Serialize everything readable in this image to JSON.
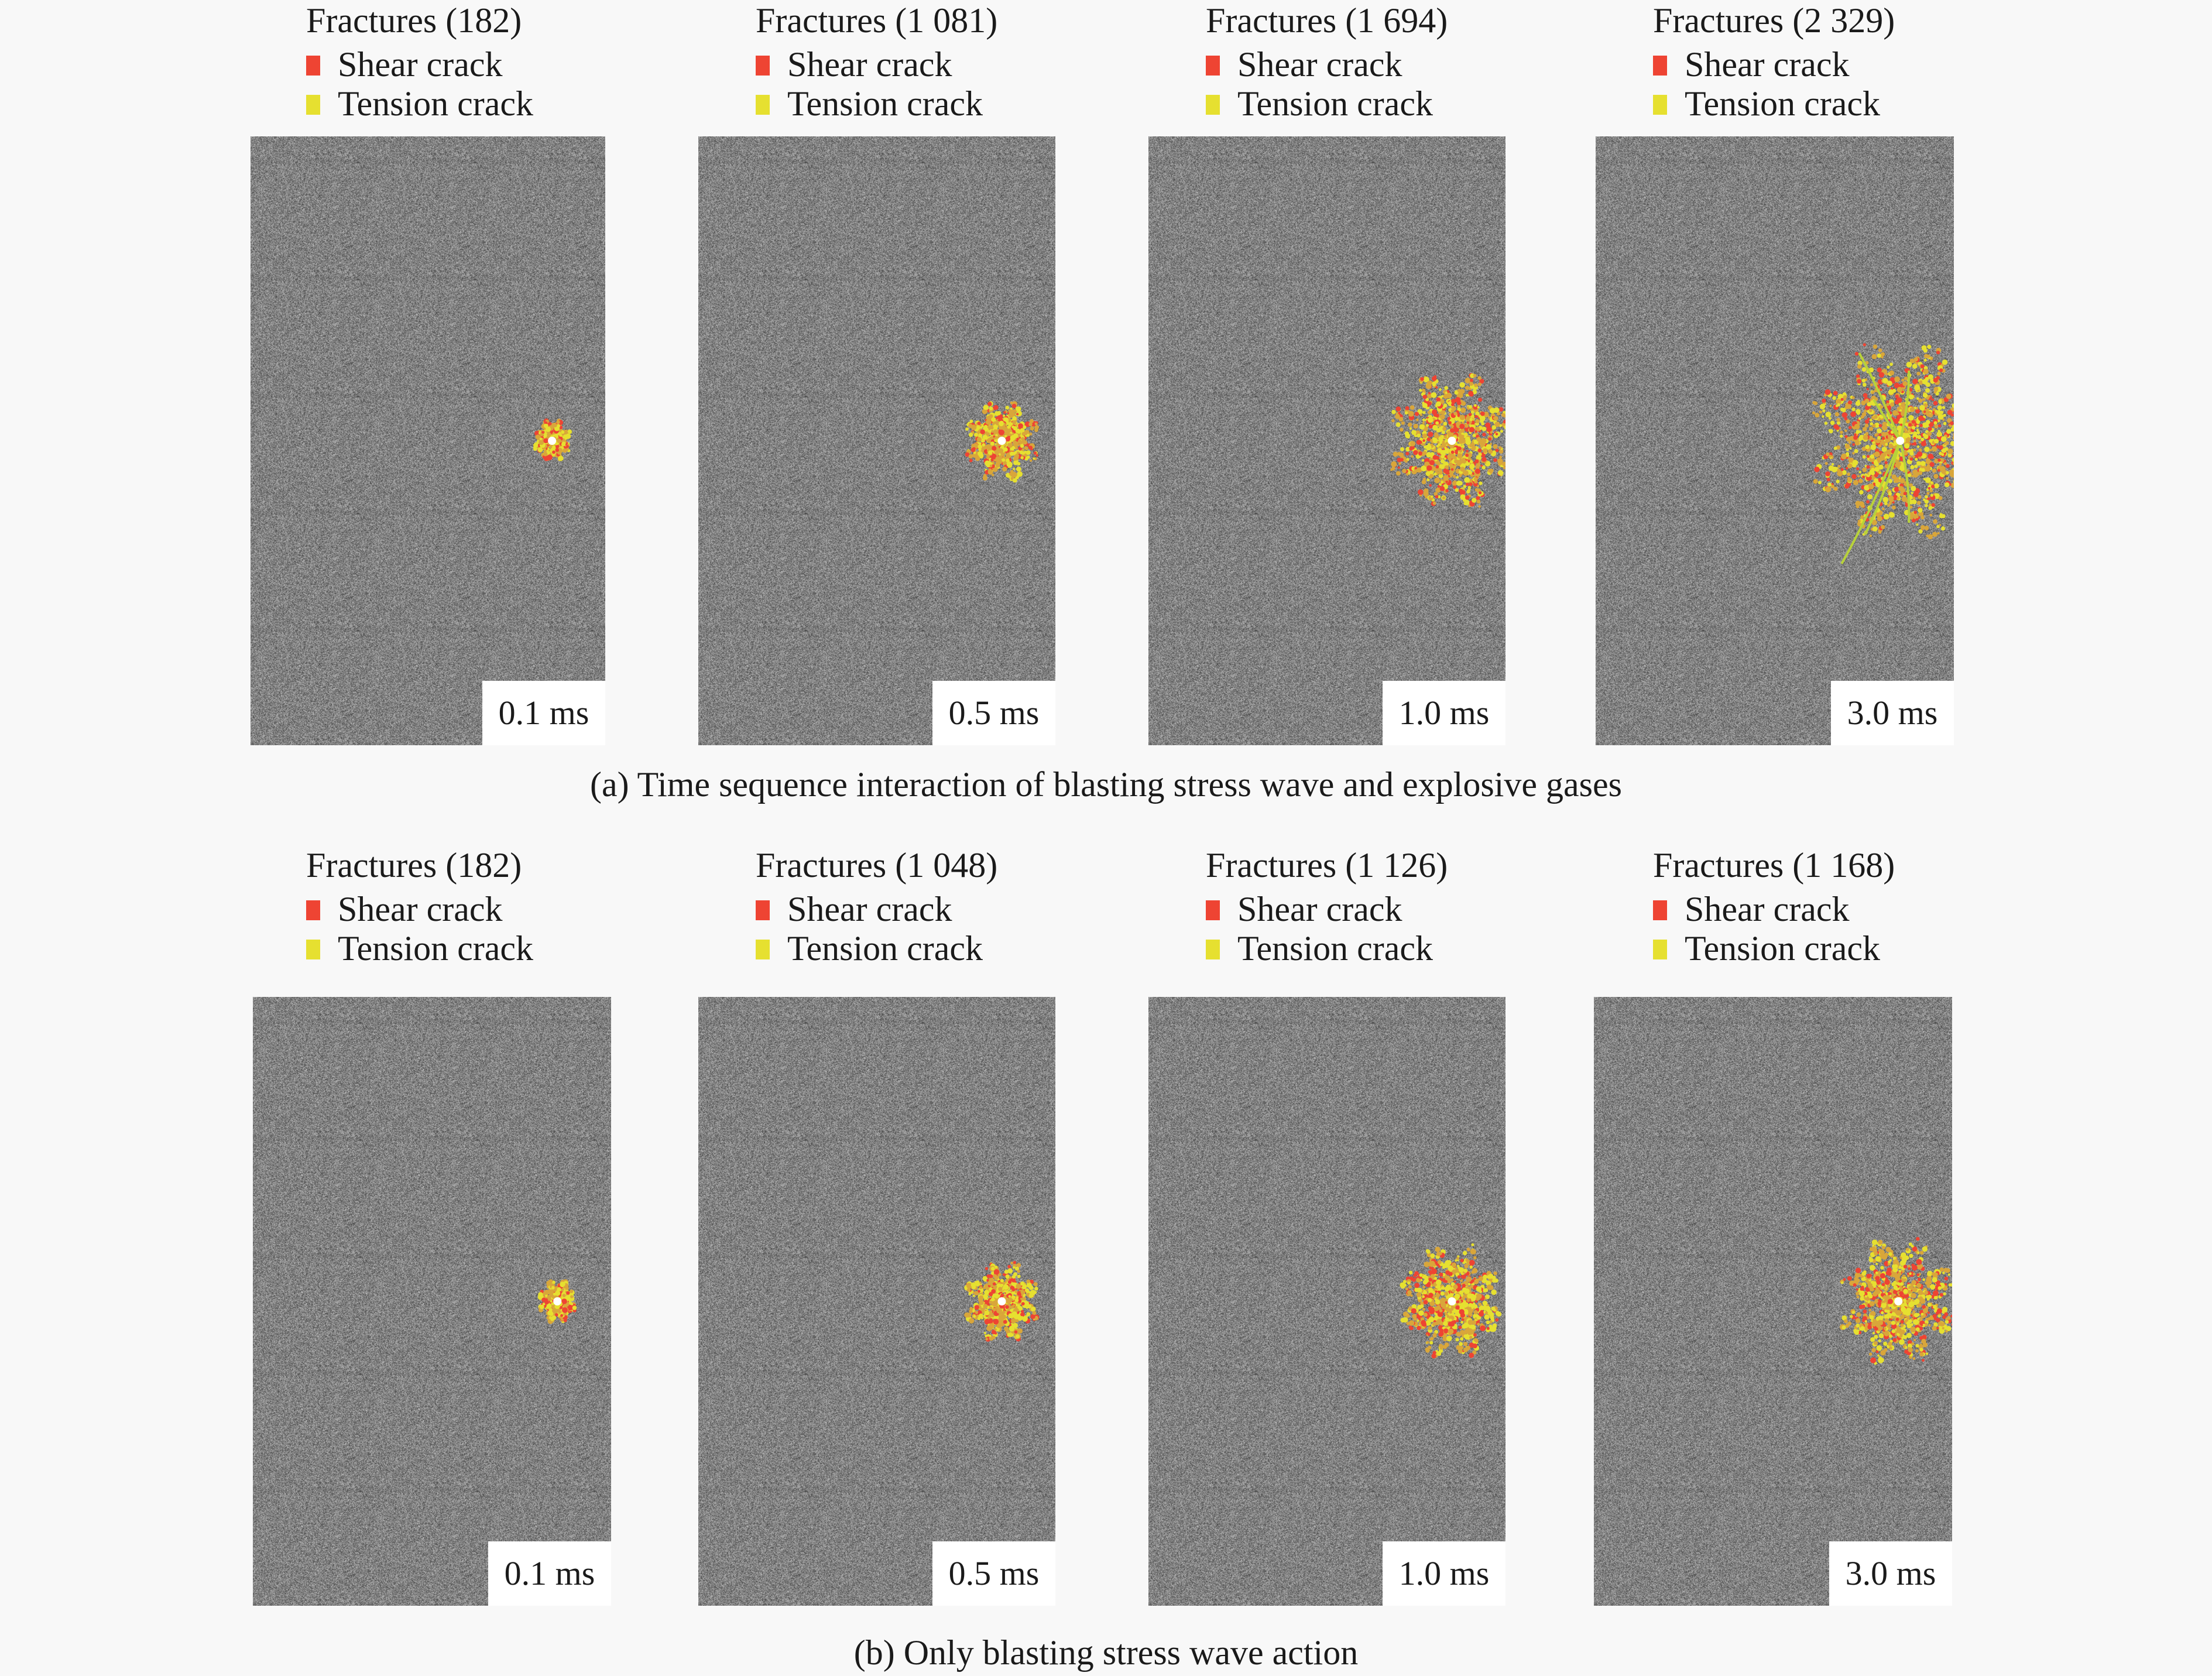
{
  "colors": {
    "shear": "#ee4433",
    "tension": "#e6e030",
    "rock": "#8a8a8a"
  },
  "legend": {
    "shear_label": "Shear crack",
    "tension_label": "Tension crack"
  },
  "rows": [
    {
      "caption": "(a) Time sequence interaction of blasting stress wave and explosive gases",
      "panels": [
        {
          "fractures_label": "Fractures (182)",
          "fractures": 182,
          "time_label": "0.1 ms"
        },
        {
          "fractures_label": "Fractures (1 081)",
          "fractures": 1081,
          "time_label": "0.5 ms"
        },
        {
          "fractures_label": "Fractures (1 694)",
          "fractures": 1694,
          "time_label": "1.0 ms"
        },
        {
          "fractures_label": "Fractures (2 329)",
          "fractures": 2329,
          "time_label": "3.0 ms"
        }
      ]
    },
    {
      "caption": "(b) Only blasting stress wave action",
      "panels": [
        {
          "fractures_label": "Fractures (182)",
          "fractures": 182,
          "time_label": "0.1 ms"
        },
        {
          "fractures_label": "Fractures (1 048)",
          "fractures": 1048,
          "time_label": "0.5 ms"
        },
        {
          "fractures_label": "Fractures (1 126)",
          "fractures": 1126,
          "time_label": "1.0 ms"
        },
        {
          "fractures_label": "Fractures (1 168)",
          "fractures": 1168,
          "time_label": "3.0 ms"
        }
      ]
    }
  ]
}
